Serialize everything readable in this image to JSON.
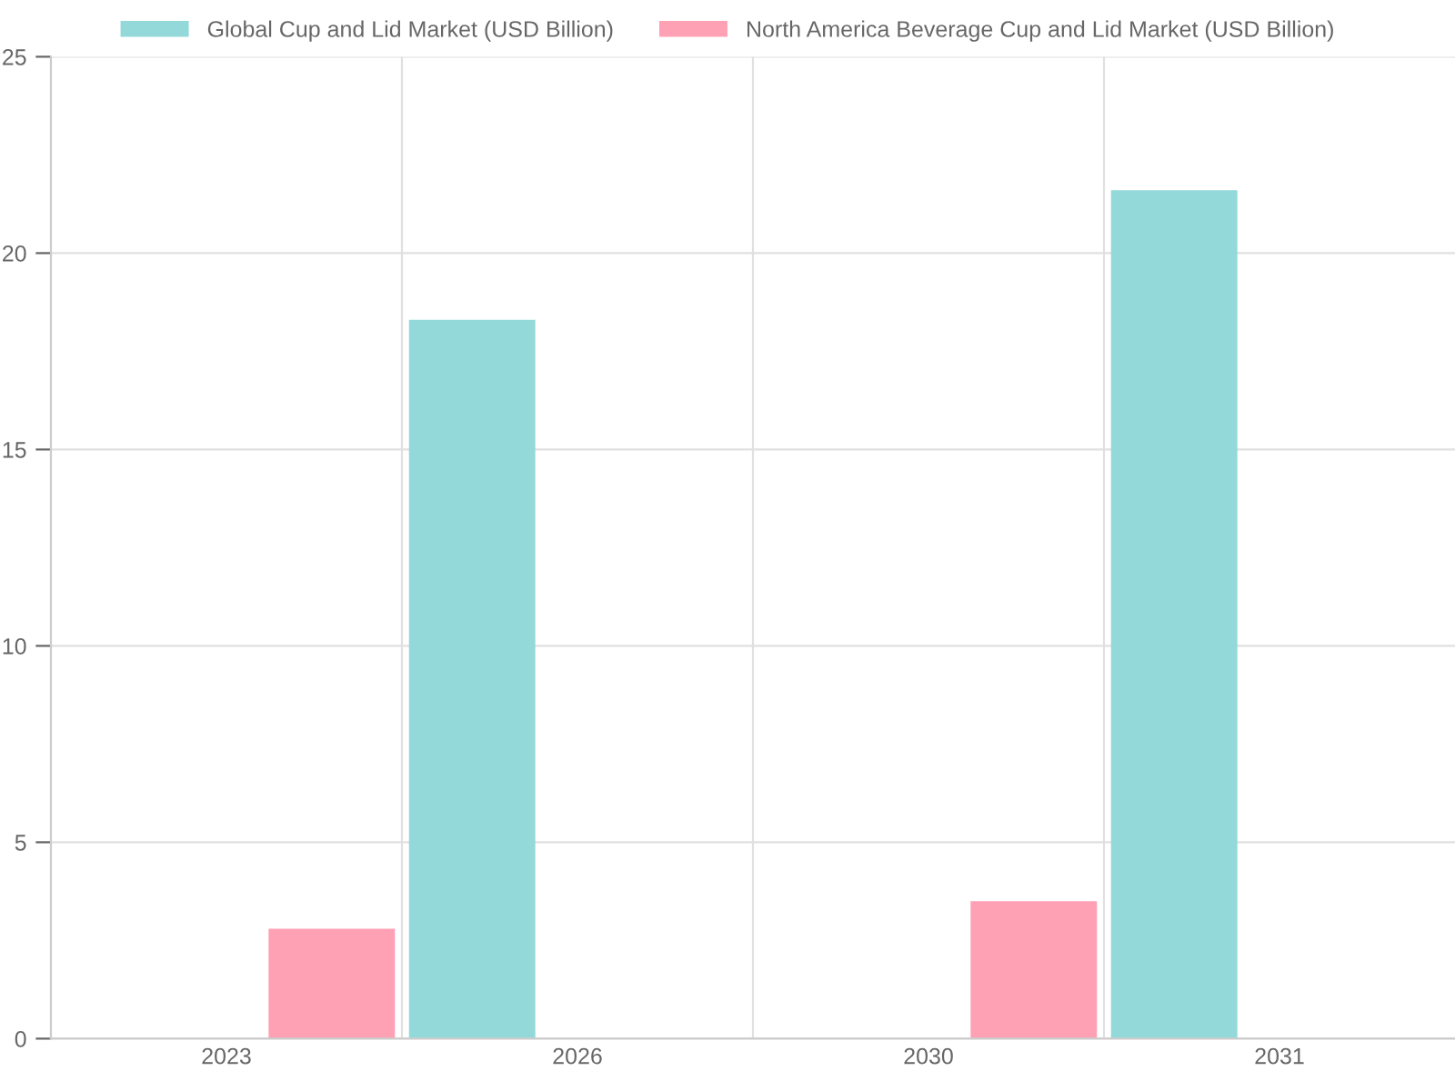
{
  "chart_data": {
    "type": "bar",
    "categories": [
      "2023",
      "2026",
      "2030",
      "2031"
    ],
    "series": [
      {
        "name": "Global Cup and Lid Market (USD Billion)",
        "color": "#93d9d9",
        "values": [
          null,
          18.3,
          null,
          21.6
        ]
      },
      {
        "name": "North America Beverage Cup and Lid Market (USD Billion)",
        "color": "#ffa1b5",
        "values": [
          2.8,
          null,
          3.5,
          null
        ]
      }
    ],
    "ylim": [
      0,
      25
    ],
    "yticks": [
      0,
      5,
      10,
      15,
      20,
      25
    ],
    "grid": true,
    "legend": "top"
  }
}
